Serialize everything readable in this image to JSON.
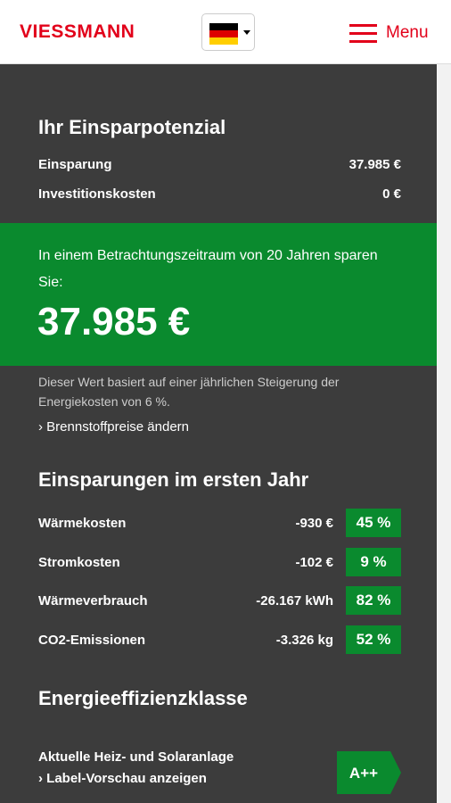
{
  "header": {
    "logo": "VIESSMANN",
    "menu": "Menu"
  },
  "summary": {
    "title": "Ihr Einsparpotenzial",
    "rows": [
      [
        "Einsparung",
        "37.985 €"
      ],
      [
        "Investitionskosten",
        "0 €"
      ]
    ]
  },
  "highlight": {
    "text": "In einem Betrachtungszeitraum von 20 Jahren sparen Sie:",
    "amount": "37.985 €"
  },
  "note": {
    "text": "Dieser Wert basiert auf einer jährlichen Steigerung der Energiekosten von 6 %.",
    "link": "Brennstoffpreise ändern"
  },
  "first_year": {
    "title": "Einsparungen im ersten Jahr",
    "rows": [
      [
        "Wärmekosten",
        "-930 €",
        "45 %"
      ],
      [
        "Stromkosten",
        "-102 €",
        "9 %"
      ],
      [
        "Wärmeverbrauch",
        "-26.167 kWh",
        "82 %"
      ],
      [
        "CO2-Emissionen",
        "-3.326 kg",
        "52 %"
      ]
    ]
  },
  "efficiency": {
    "title": "Energieeffizienzklasse",
    "label": "Aktuelle Heiz- und Solaranlage",
    "link": "Label-Vorschau anzeigen",
    "class": "A++"
  }
}
